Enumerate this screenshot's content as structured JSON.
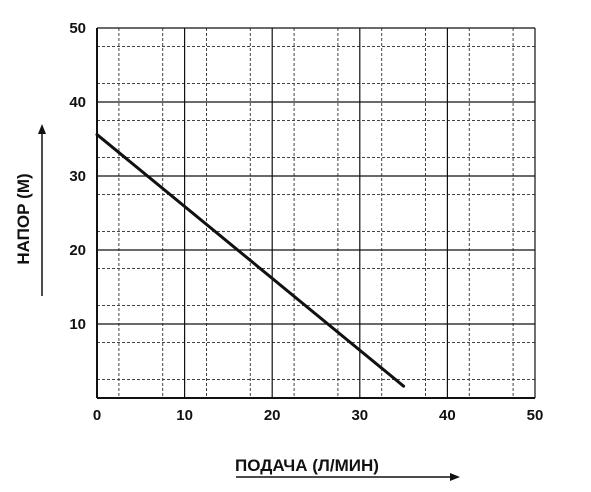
{
  "chart_data": {
    "type": "line",
    "xlabel": "ПОДАЧА (Л/МИН)",
    "ylabel": "НАПОР (М)",
    "xlim": [
      0,
      50
    ],
    "ylim": [
      0,
      50
    ],
    "x_ticks": [
      0,
      10,
      20,
      30,
      40,
      50
    ],
    "y_ticks": [
      10,
      20,
      30,
      40,
      50
    ],
    "grid": true,
    "series": [
      {
        "x": [
          0,
          35
        ],
        "y": [
          35.6,
          1.6
        ],
        "color": "#111111"
      }
    ]
  }
}
